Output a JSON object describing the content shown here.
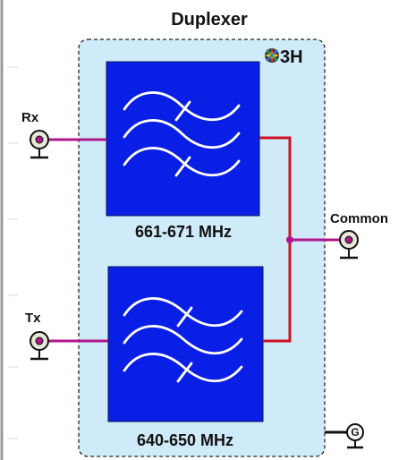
{
  "diagram": {
    "title": "Duplexer",
    "logo_text": "3H",
    "ports": {
      "rx": "Rx",
      "tx": "Tx",
      "common": "Common",
      "ground": "G"
    },
    "filters": {
      "upper": {
        "band": "661-671 MHz"
      },
      "lower": {
        "band": "640-650 MHz"
      }
    }
  },
  "colors": {
    "panel_fill": "#cfeaf8",
    "filter_fill": "#0a1fe6",
    "rx_tx_line": "#b0178e",
    "common_line": "#cc1122",
    "connector_fill": "#e8e8d8"
  }
}
